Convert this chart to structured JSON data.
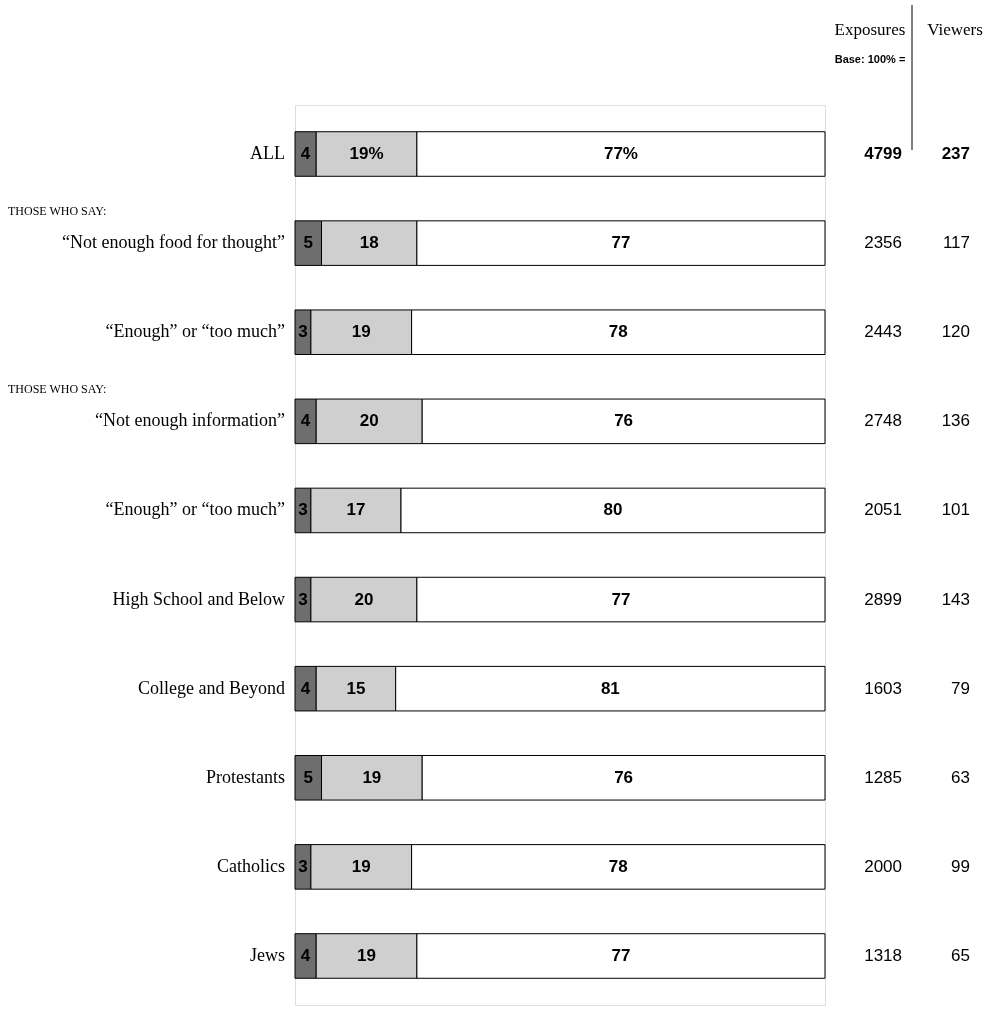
{
  "chart_data": {
    "type": "bar",
    "orientation": "horizontal",
    "stacked": true,
    "categories": [
      "ALL",
      "“Not enough food for thought”",
      "“Enough” or “too much”",
      "“Not enough information”",
      "“Enough” or “too much”",
      "High School and Below",
      "College and Beyond",
      "Protestants",
      "Catholics",
      "Jews"
    ],
    "series": [
      {
        "color": "#6e6e6e",
        "values": [
          4,
          5,
          3,
          4,
          3,
          3,
          4,
          5,
          3,
          4
        ],
        "value_labels": [
          "4",
          "5",
          "3",
          "4",
          "3",
          "3",
          "4",
          "5",
          "3",
          "4"
        ]
      },
      {
        "color": "#cfcfcf",
        "values": [
          19,
          18,
          19,
          20,
          17,
          20,
          15,
          19,
          19,
          19
        ],
        "value_labels": [
          "19%",
          "18",
          "19",
          "20",
          "17",
          "20",
          "15",
          "19",
          "19",
          "19"
        ]
      },
      {
        "color": "#ffffff",
        "values": [
          77,
          77,
          78,
          76,
          80,
          77,
          81,
          76,
          78,
          77
        ],
        "value_labels": [
          "77%",
          "77",
          "78",
          "76",
          "80",
          "77",
          "81",
          "76",
          "78",
          "77"
        ]
      }
    ],
    "annotations": [
      "THOSE WHO SAY:",
      "THOSE WHO SAY:",
      "Exposures",
      "Viewers",
      "Base: 100% =",
      "4799",
      "237",
      "2356",
      "117",
      "2443",
      "120",
      "2748",
      "136",
      "2051",
      "101",
      "2899",
      "143",
      "1603",
      "79",
      "1285",
      "63",
      "2000",
      "99",
      "1318",
      "65"
    ]
  }
}
